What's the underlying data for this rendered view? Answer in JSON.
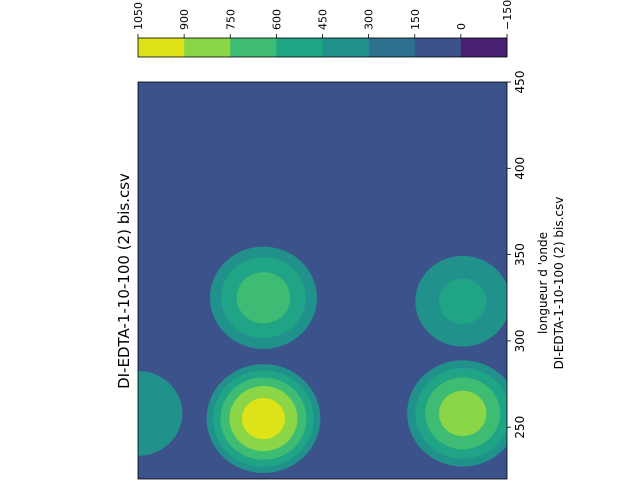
{
  "chart_data": {
    "type": "heatmap",
    "subtype": "filled-contour",
    "orientation": "rotated 90 degrees counter-clockwise",
    "title": "DI-EDTA-1-10-100 (2) bis.csv",
    "wavelength_axis": {
      "label": "longueur d 'onde",
      "secondary_label": "DI-EDTA-1-10-100 (2) bis.csv",
      "range": [
        220,
        450
      ],
      "ticks": [
        250,
        300,
        350,
        400,
        450
      ]
    },
    "colorbar": {
      "levels": [
        1050,
        900,
        750,
        600,
        450,
        300,
        150,
        0,
        -150
      ],
      "tick_labels": [
        "1050",
        "900",
        "750",
        "600",
        "450",
        "300",
        "150",
        "0",
        "−150"
      ],
      "colors": [
        "#dde318",
        "#8bd646",
        "#3fbc73",
        "#20a486",
        "#21918c",
        "#2c728e",
        "#3b528b",
        "#482173"
      ]
    },
    "background_color": "#3b528b",
    "peaks": [
      {
        "wavelength": 255,
        "position": 0.34,
        "intensity": 1000
      },
      {
        "wavelength": 325,
        "position": 0.34,
        "intensity": 700
      },
      {
        "wavelength": 258,
        "position": 0.88,
        "intensity": 850
      },
      {
        "wavelength": 323,
        "position": 0.88,
        "intensity": 500
      },
      {
        "wavelength": 258,
        "position": 0.0,
        "intensity": 450
      }
    ]
  }
}
